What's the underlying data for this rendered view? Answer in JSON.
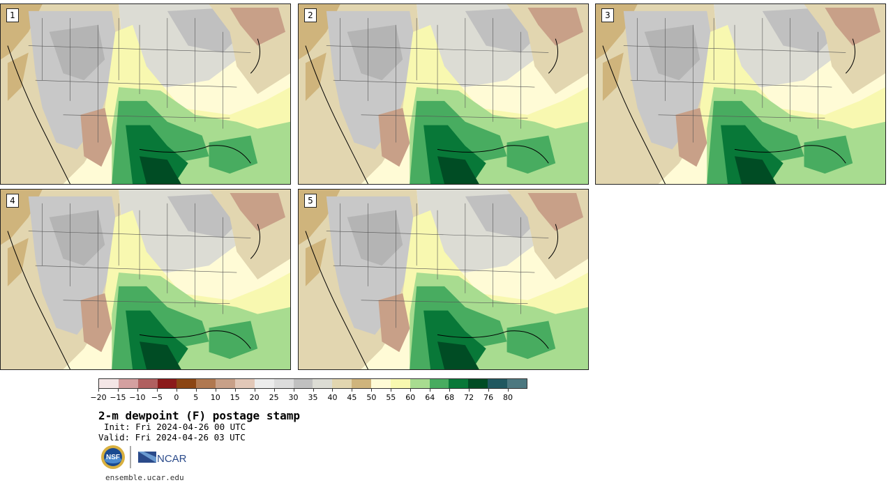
{
  "panels": [
    {
      "label": "1"
    },
    {
      "label": "2"
    },
    {
      "label": "3"
    },
    {
      "label": "4"
    },
    {
      "label": "5"
    }
  ],
  "colorbar": {
    "colors": [
      "#f4e6e6",
      "#d4a0a0",
      "#b06060",
      "#8b1a1a",
      "#8b4513",
      "#b07850",
      "#c8a088",
      "#e2c8b8",
      "#ececec",
      "#dcdcdc",
      "#c0c0c0",
      "#dcdcd4",
      "#e2d6b0",
      "#cfb47c",
      "#fffbd6",
      "#f8f8b0",
      "#a8dc90",
      "#48ac60",
      "#087838",
      "#004c24",
      "#205860",
      "#4c7880"
    ],
    "tick_labels": [
      "−20",
      "−15",
      "−10",
      "−5",
      "0",
      "5",
      "10",
      "15",
      "20",
      "25",
      "30",
      "35",
      "40",
      "45",
      "50",
      "55",
      "60",
      "64",
      "68",
      "72",
      "76",
      "80"
    ]
  },
  "title": "2-m dewpoint (F) postage stamp",
  "init_line": "Init: Fri 2024-04-26 00 UTC",
  "valid_line": "Valid: Fri 2024-04-26 03 UTC",
  "logos": {
    "nsf": "NSF",
    "ncar": "NCAR"
  },
  "url": "ensemble.ucar.edu"
}
